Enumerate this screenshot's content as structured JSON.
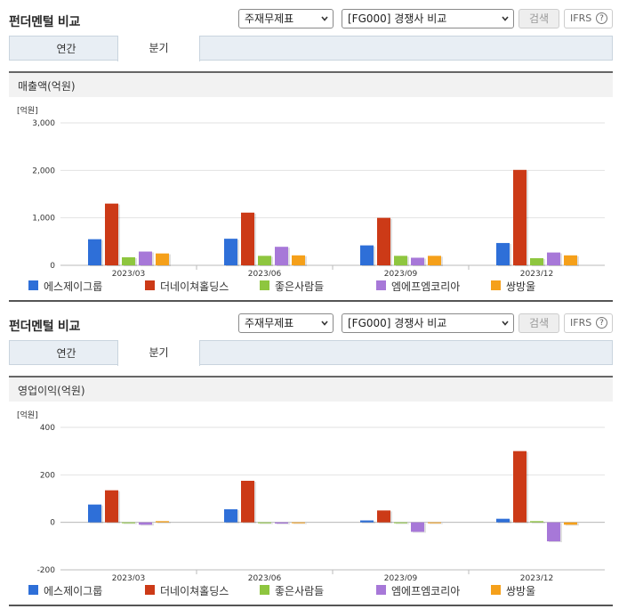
{
  "panels": [
    {
      "header": {
        "title": "펀더멘털 비교",
        "filter_select": "주재무제표",
        "compare_select": "[FG000] 경쟁사 비교",
        "search_button": "검색",
        "ifrs_button": "IFRS",
        "help_icon_text": "?"
      },
      "tabs": [
        {
          "label": "연간",
          "active": false
        },
        {
          "label": "분기",
          "active": true
        }
      ],
      "section_title": "매출액(억원)",
      "chart_data": {
        "type": "bar",
        "title": "매출액(억원)",
        "unit_label": "[억원]",
        "categories": [
          "2023/03",
          "2023/06",
          "2023/09",
          "2023/12"
        ],
        "ylim": [
          0,
          3000
        ],
        "yticks": [
          0,
          1000,
          2000,
          3000
        ],
        "ytick_labels": [
          "0",
          "1,000",
          "2,000",
          "3,000"
        ],
        "grid": true,
        "legend_position": "bottom",
        "series": [
          {
            "name": "에스제이그룹",
            "color": "#2e6fd8",
            "values": [
              550,
              560,
              420,
              470
            ]
          },
          {
            "name": "더네이쳐홀딩스",
            "color": "#cc3a17",
            "values": [
              1300,
              1110,
              1000,
              2010
            ]
          },
          {
            "name": "좋은사람들",
            "color": "#8ec63f",
            "values": [
              170,
              200,
              200,
              150
            ]
          },
          {
            "name": "엠에프엠코리아",
            "color": "#a778d8",
            "values": [
              290,
              390,
              160,
              270
            ]
          },
          {
            "name": "쌍방울",
            "color": "#f5a01a",
            "values": [
              250,
              210,
              200,
              210
            ]
          }
        ]
      }
    },
    {
      "header": {
        "title": "펀더멘털 비교",
        "filter_select": "주재무제표",
        "compare_select": "[FG000] 경쟁사 비교",
        "search_button": "검색",
        "ifrs_button": "IFRS",
        "help_icon_text": "?"
      },
      "tabs": [
        {
          "label": "연간",
          "active": false
        },
        {
          "label": "분기",
          "active": true
        }
      ],
      "section_title": "영업이익(억원)",
      "chart_data": {
        "type": "bar",
        "title": "영업이익(억원)",
        "unit_label": "[억원]",
        "categories": [
          "2023/03",
          "2023/06",
          "2023/09",
          "2023/12"
        ],
        "ylim": [
          -200,
          400
        ],
        "yticks": [
          -200,
          0,
          200,
          400
        ],
        "ytick_labels": [
          "-200",
          "0",
          "200",
          "400"
        ],
        "grid": true,
        "legend_position": "bottom",
        "series": [
          {
            "name": "에스제이그룹",
            "color": "#2e6fd8",
            "values": [
              75,
              55,
              8,
              15
            ]
          },
          {
            "name": "더네이쳐홀딩스",
            "color": "#cc3a17",
            "values": [
              135,
              175,
              50,
              300
            ]
          },
          {
            "name": "좋은사람들",
            "color": "#8ec63f",
            "values": [
              -3,
              -2,
              -3,
              5
            ]
          },
          {
            "name": "엠에프엠코리아",
            "color": "#a778d8",
            "values": [
              -10,
              -5,
              -40,
              -80
            ]
          },
          {
            "name": "쌍방울",
            "color": "#f5a01a",
            "values": [
              5,
              -3,
              -2,
              -10
            ]
          }
        ]
      }
    }
  ]
}
